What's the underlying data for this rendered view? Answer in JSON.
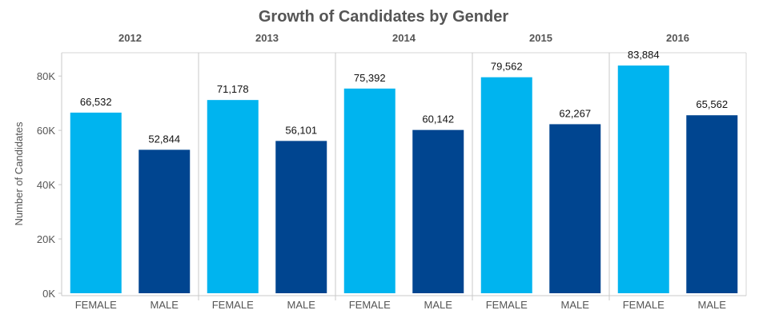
{
  "chart_data": {
    "type": "bar",
    "title": "Growth of Candidates by Gender",
    "ylabel": "Number of Candidates",
    "xlabel": "",
    "ylim": [
      0,
      88000
    ],
    "y_ticks": [
      0,
      20000,
      40000,
      60000,
      80000
    ],
    "y_tick_labels": [
      "0K",
      "20K",
      "40K",
      "60K",
      "80K"
    ],
    "panels": [
      "2012",
      "2013",
      "2014",
      "2015",
      "2016"
    ],
    "categories": [
      "FEMALE",
      "MALE"
    ],
    "values": [
      [
        66532,
        52844
      ],
      [
        71178,
        56101
      ],
      [
        75392,
        60142
      ],
      [
        79562,
        62267
      ],
      [
        83884,
        65562
      ]
    ],
    "value_labels": [
      [
        "66,532",
        "52,844"
      ],
      [
        "71,178",
        "56,101"
      ],
      [
        "75,392",
        "60,142"
      ],
      [
        "79,562",
        "62,267"
      ],
      [
        "83,884",
        "65,562"
      ]
    ],
    "colors": {
      "FEMALE": "#00b4ef",
      "MALE": "#004590"
    },
    "grid": false,
    "legend": "none"
  }
}
